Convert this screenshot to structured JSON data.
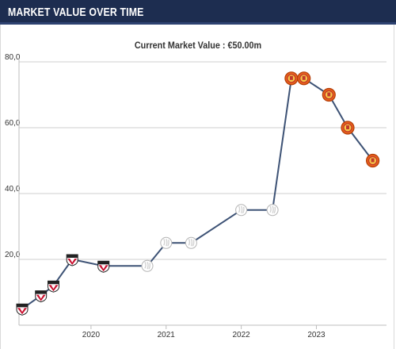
{
  "header": {
    "title": "MARKET VALUE OVER TIME"
  },
  "subtitle": "Current Market Value : €50.00m",
  "colors": {
    "header_bg": "#1d2d50",
    "line": "#3d5275",
    "grid": "#cfcfcf",
    "club_sao_paulo": "#c8102e",
    "club_ajax": "#d2d2d2",
    "club_man_utd": "#e8601c"
  },
  "chart_data": {
    "type": "line",
    "title": "",
    "xlabel": "",
    "ylabel": "",
    "ylim": [
      0,
      80
    ],
    "yticks": [
      "80,0",
      "60,0",
      "40,0",
      "20,0"
    ],
    "xticks": [
      "2020",
      "2021",
      "2022",
      "2023"
    ],
    "grid": true,
    "series": [
      {
        "values": [
          {
            "x": "2019-02",
            "y": 5,
            "club": "sao-paulo"
          },
          {
            "x": "2019-05",
            "y": 9,
            "club": "sao-paulo"
          },
          {
            "x": "2019-07",
            "y": 12,
            "club": "sao-paulo"
          },
          {
            "x": "2019-10",
            "y": 20,
            "club": "sao-paulo"
          },
          {
            "x": "2020-03",
            "y": 18,
            "club": "sao-paulo"
          },
          {
            "x": "2020-10",
            "y": 18,
            "club": "ajax"
          },
          {
            "x": "2021-01",
            "y": 25,
            "club": "ajax"
          },
          {
            "x": "2021-05",
            "y": 25,
            "club": "ajax"
          },
          {
            "x": "2022-01",
            "y": 35,
            "club": "ajax"
          },
          {
            "x": "2022-06",
            "y": 35,
            "club": "ajax"
          },
          {
            "x": "2022-09",
            "y": 75,
            "club": "man-utd"
          },
          {
            "x": "2022-11",
            "y": 75,
            "club": "man-utd"
          },
          {
            "x": "2023-03",
            "y": 70,
            "club": "man-utd"
          },
          {
            "x": "2023-06",
            "y": 60,
            "club": "man-utd"
          },
          {
            "x": "2023-10",
            "y": 50,
            "club": "man-utd"
          }
        ]
      }
    ]
  }
}
